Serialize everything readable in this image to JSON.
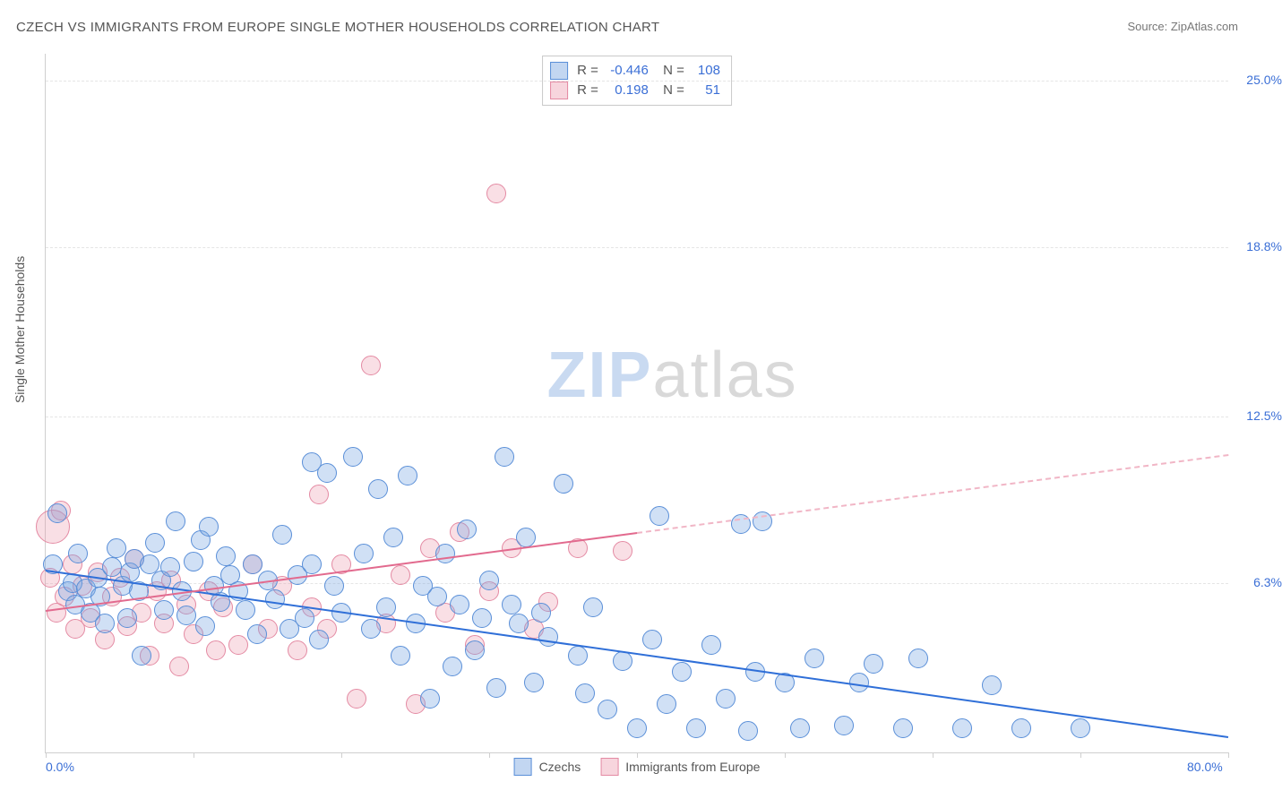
{
  "title": "CZECH VS IMMIGRANTS FROM EUROPE SINGLE MOTHER HOUSEHOLDS CORRELATION CHART",
  "source": "Source: ZipAtlas.com",
  "watermark": {
    "zip": "ZIP",
    "atlas": "atlas"
  },
  "chart": {
    "type": "scatter",
    "background_color": "#ffffff",
    "grid_color": "#e5e5e5",
    "axis_color": "#cfcfcf",
    "text_color": "#555555",
    "value_color": "#3b6fd6",
    "ylabel": "Single Mother Households",
    "xlim": [
      0,
      80
    ],
    "ylim": [
      0,
      26
    ],
    "x_ticks": [
      0,
      10,
      20,
      30,
      40,
      50,
      60,
      70,
      80
    ],
    "x_tick_labels": {
      "0": "0.0%",
      "80": "80.0%"
    },
    "y_grid": [
      6.3,
      12.5,
      18.8,
      25.0
    ],
    "y_tick_labels": [
      "6.3%",
      "12.5%",
      "18.8%",
      "25.0%"
    ],
    "marker_radius": 10,
    "big_marker_radius": 18,
    "series": {
      "czechs": {
        "label": "Czechs",
        "color_fill": "rgba(120,165,225,0.35)",
        "color_stroke": "#5a8fd8",
        "R": "-0.446",
        "N": "108",
        "trend": {
          "x1": 0,
          "y1": 6.8,
          "x2": 80,
          "y2": 0.6,
          "color": "#2f6fd8"
        },
        "points": [
          [
            0.5,
            7.0
          ],
          [
            0.8,
            8.9
          ],
          [
            1.5,
            6.0
          ],
          [
            1.8,
            6.3
          ],
          [
            2.0,
            5.5
          ],
          [
            2.7,
            6.1
          ],
          [
            2.2,
            7.4
          ],
          [
            3.0,
            5.2
          ],
          [
            3.5,
            6.5
          ],
          [
            3.7,
            5.8
          ],
          [
            4.0,
            4.8
          ],
          [
            4.5,
            6.9
          ],
          [
            4.8,
            7.6
          ],
          [
            5.2,
            6.2
          ],
          [
            5.5,
            5.0
          ],
          [
            5.7,
            6.7
          ],
          [
            6.0,
            7.2
          ],
          [
            6.3,
            6.0
          ],
          [
            6.5,
            3.6
          ],
          [
            7.0,
            7.0
          ],
          [
            7.4,
            7.8
          ],
          [
            7.8,
            6.4
          ],
          [
            8.0,
            5.3
          ],
          [
            8.4,
            6.9
          ],
          [
            8.8,
            8.6
          ],
          [
            9.2,
            6.0
          ],
          [
            9.5,
            5.1
          ],
          [
            10.0,
            7.1
          ],
          [
            10.5,
            7.9
          ],
          [
            10.8,
            4.7
          ],
          [
            11.0,
            8.4
          ],
          [
            11.4,
            6.2
          ],
          [
            11.8,
            5.6
          ],
          [
            12.2,
            7.3
          ],
          [
            12.5,
            6.6
          ],
          [
            13.0,
            6.0
          ],
          [
            13.5,
            5.3
          ],
          [
            14.0,
            7.0
          ],
          [
            14.3,
            4.4
          ],
          [
            15.0,
            6.4
          ],
          [
            15.5,
            5.7
          ],
          [
            16.0,
            8.1
          ],
          [
            16.5,
            4.6
          ],
          [
            17.0,
            6.6
          ],
          [
            17.5,
            5.0
          ],
          [
            18.0,
            7.0
          ],
          [
            18.0,
            10.8
          ],
          [
            18.5,
            4.2
          ],
          [
            19.0,
            10.4
          ],
          [
            19.5,
            6.2
          ],
          [
            20.0,
            5.2
          ],
          [
            20.8,
            11.0
          ],
          [
            21.5,
            7.4
          ],
          [
            22.0,
            4.6
          ],
          [
            22.5,
            9.8
          ],
          [
            23.0,
            5.4
          ],
          [
            23.5,
            8.0
          ],
          [
            24.0,
            3.6
          ],
          [
            24.5,
            10.3
          ],
          [
            25.0,
            4.8
          ],
          [
            25.5,
            6.2
          ],
          [
            26.0,
            2.0
          ],
          [
            26.5,
            5.8
          ],
          [
            27.0,
            7.4
          ],
          [
            27.5,
            3.2
          ],
          [
            28.0,
            5.5
          ],
          [
            28.5,
            8.3
          ],
          [
            29.0,
            3.8
          ],
          [
            29.5,
            5.0
          ],
          [
            30.0,
            6.4
          ],
          [
            30.5,
            2.4
          ],
          [
            31.0,
            11.0
          ],
          [
            31.5,
            5.5
          ],
          [
            32.0,
            4.8
          ],
          [
            32.5,
            8.0
          ],
          [
            33.0,
            2.6
          ],
          [
            33.5,
            5.2
          ],
          [
            34.0,
            4.3
          ],
          [
            35.0,
            10.0
          ],
          [
            36.0,
            3.6
          ],
          [
            36.5,
            2.2
          ],
          [
            37.0,
            5.4
          ],
          [
            38.0,
            1.6
          ],
          [
            39.0,
            3.4
          ],
          [
            40.0,
            0.9
          ],
          [
            41.0,
            4.2
          ],
          [
            41.5,
            8.8
          ],
          [
            42.0,
            1.8
          ],
          [
            43.0,
            3.0
          ],
          [
            44.0,
            0.9
          ],
          [
            45.0,
            4.0
          ],
          [
            46.0,
            2.0
          ],
          [
            47.0,
            8.5
          ],
          [
            47.5,
            0.8
          ],
          [
            48.0,
            3.0
          ],
          [
            48.5,
            8.6
          ],
          [
            50.0,
            2.6
          ],
          [
            51.0,
            0.9
          ],
          [
            52.0,
            3.5
          ],
          [
            54.0,
            1.0
          ],
          [
            55.0,
            2.6
          ],
          [
            56.0,
            3.3
          ],
          [
            58.0,
            0.9
          ],
          [
            59.0,
            3.5
          ],
          [
            62.0,
            0.9
          ],
          [
            64.0,
            2.5
          ],
          [
            66.0,
            0.9
          ],
          [
            70.0,
            0.9
          ]
        ]
      },
      "immigrants": {
        "label": "Immigrants from Europe",
        "color_fill": "rgba(235,150,170,0.3)",
        "color_stroke": "#e48aa3",
        "R": "0.198",
        "N": "51",
        "trend_solid": {
          "x1": 0,
          "y1": 5.3,
          "x2": 40,
          "y2": 8.2,
          "color": "#e26a8e"
        },
        "trend_dash": {
          "x1": 40,
          "y1": 8.2,
          "x2": 80,
          "y2": 11.1,
          "color": "#f1b6c6"
        },
        "big_points": [
          [
            0.5,
            8.4
          ]
        ],
        "points": [
          [
            0.3,
            6.5
          ],
          [
            0.7,
            5.2
          ],
          [
            1.0,
            9.0
          ],
          [
            1.3,
            5.8
          ],
          [
            1.8,
            7.0
          ],
          [
            2.0,
            4.6
          ],
          [
            2.5,
            6.2
          ],
          [
            3.0,
            5.0
          ],
          [
            3.5,
            6.7
          ],
          [
            4.0,
            4.2
          ],
          [
            4.5,
            5.8
          ],
          [
            5.0,
            6.5
          ],
          [
            5.5,
            4.7
          ],
          [
            6.0,
            7.2
          ],
          [
            6.5,
            5.2
          ],
          [
            7.0,
            3.6
          ],
          [
            7.5,
            6.0
          ],
          [
            8.0,
            4.8
          ],
          [
            8.5,
            6.4
          ],
          [
            9.0,
            3.2
          ],
          [
            9.5,
            5.5
          ],
          [
            10.0,
            4.4
          ],
          [
            11.0,
            6.0
          ],
          [
            11.5,
            3.8
          ],
          [
            12.0,
            5.4
          ],
          [
            13.0,
            4.0
          ],
          [
            14.0,
            7.0
          ],
          [
            15.0,
            4.6
          ],
          [
            16.0,
            6.2
          ],
          [
            17.0,
            3.8
          ],
          [
            18.0,
            5.4
          ],
          [
            18.5,
            9.6
          ],
          [
            19.0,
            4.6
          ],
          [
            20.0,
            7.0
          ],
          [
            21.0,
            2.0
          ],
          [
            22.0,
            14.4
          ],
          [
            23.0,
            4.8
          ],
          [
            24.0,
            6.6
          ],
          [
            25.0,
            1.8
          ],
          [
            26.0,
            7.6
          ],
          [
            27.0,
            5.2
          ],
          [
            28.0,
            8.2
          ],
          [
            29.0,
            4.0
          ],
          [
            30.0,
            6.0
          ],
          [
            30.5,
            20.8
          ],
          [
            31.5,
            7.6
          ],
          [
            33.0,
            4.6
          ],
          [
            34.0,
            5.6
          ],
          [
            36.0,
            7.6
          ],
          [
            39.0,
            7.5
          ]
        ]
      }
    }
  }
}
